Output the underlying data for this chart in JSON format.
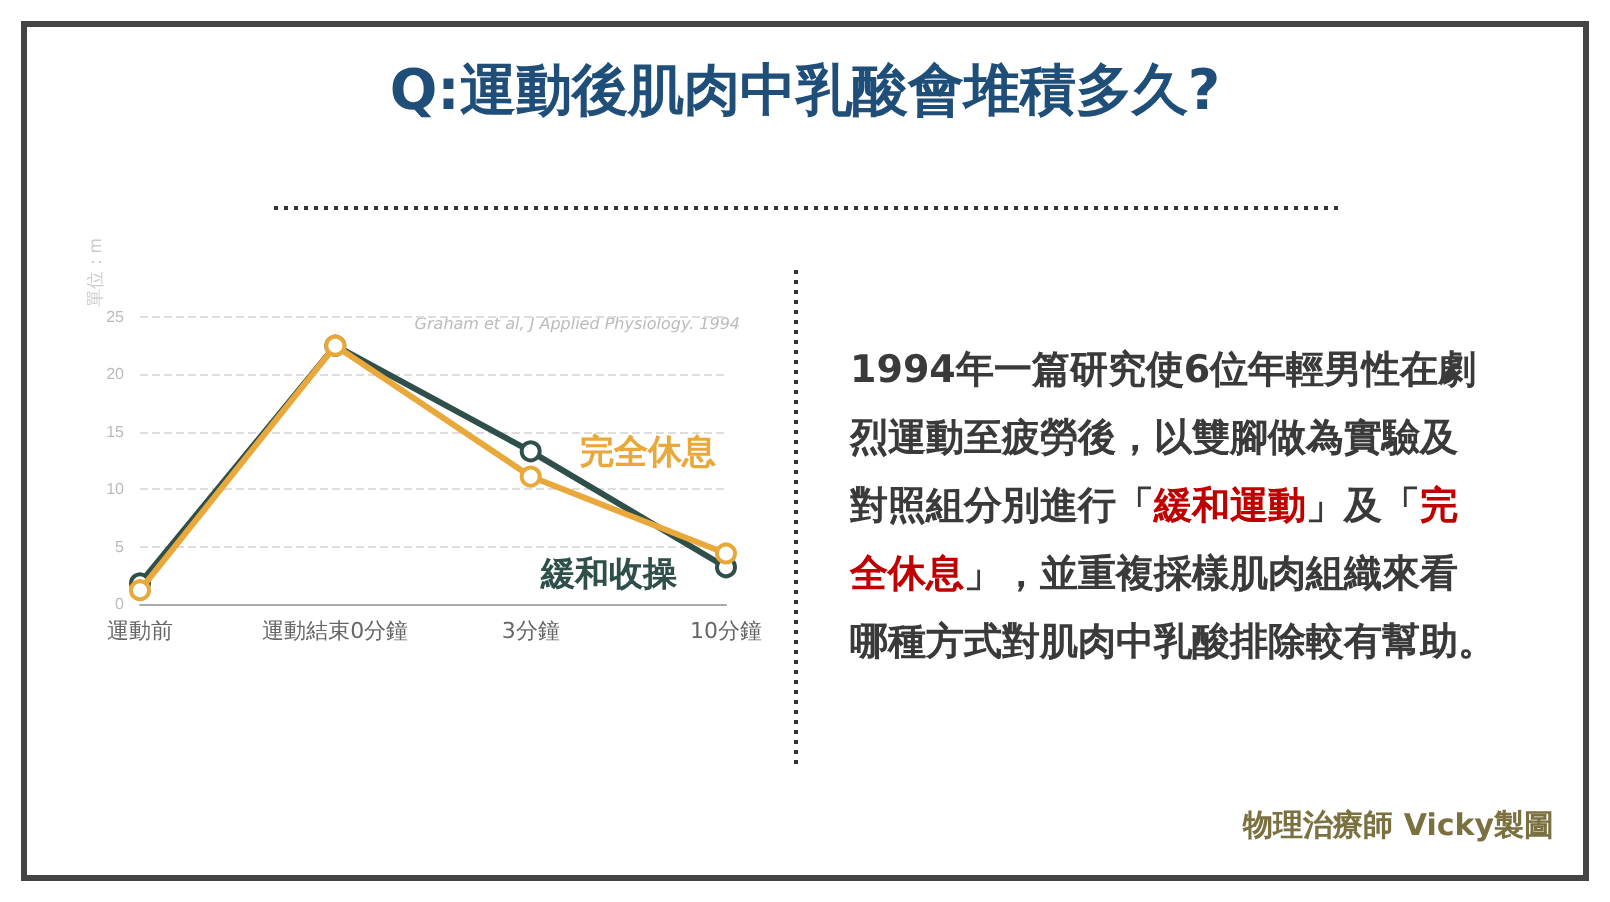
{
  "chart_data": {
    "type": "line",
    "title": "Q:運動後肌肉中乳酸會堆積多久?",
    "ylabel": "單位：m",
    "categories": [
      "運動前",
      "運動結束0分鐘",
      "3分鐘",
      "10分鐘"
    ],
    "series": [
      {
        "name": "完全休息",
        "color": "#e8a83a",
        "values": [
          1.2,
          22.5,
          11.1,
          4.4
        ]
      },
      {
        "name": "緩和收操",
        "color": "#2f4f4a",
        "values": [
          1.8,
          22.5,
          13.3,
          3.2
        ]
      }
    ],
    "ylim": [
      0,
      25
    ],
    "yticks": [
      0,
      5,
      10,
      15,
      20,
      25
    ],
    "grid": "y",
    "legend": false,
    "marker": "circle",
    "line_style": "solid",
    "annotations": [
      "Graham et al, J Applied Physiology. 1994",
      "1994年一篇研究使6位年輕男性在劇烈運動至疲勞後，以雙腳做為實驗及對照組分別進行「緩和運動」及「完全休息」，並重複採樣肌肉組織來看哪種方式對肌肉中乳酸排除較有幫助。",
      "物理治療師 Vicky製圖"
    ]
  }
}
